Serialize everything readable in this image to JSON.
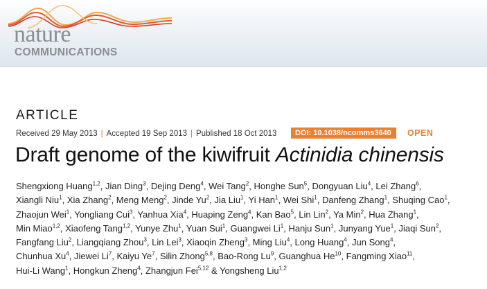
{
  "header": {
    "logo_line1": "nature",
    "logo_line2": "COMMUNICATIONS"
  },
  "article_type": "ARTICLE",
  "dates": {
    "received": "Received 29 May 2013",
    "accepted": "Accepted 19 Sep 2013",
    "published": "Published 18 Oct 2013"
  },
  "doi": "DOI: 10.1038/ncomms3640",
  "open_label": "OPEN",
  "title": {
    "main": "Draft genome of the kiwifruit ",
    "italic": "Actinidia chinensis"
  },
  "authors": [
    [
      [
        "Shengxiong Huang",
        "1,2"
      ],
      [
        "Jian Ding",
        "3"
      ],
      [
        "Dejing Deng",
        "4"
      ],
      [
        "Wei Tang",
        "2"
      ],
      [
        "Honghe Sun",
        "5"
      ],
      [
        "Dongyuan Liu",
        "4"
      ],
      [
        "Lei Zhang",
        "6"
      ]
    ],
    [
      [
        "Xiangli Niu",
        "1"
      ],
      [
        "Xia Zhang",
        "2"
      ],
      [
        "Meng Meng",
        "2"
      ],
      [
        "Jinde Yu",
        "2"
      ],
      [
        "Jia Liu",
        "1"
      ],
      [
        "Yi Han",
        "1"
      ],
      [
        "Wei Shi",
        "1"
      ],
      [
        "Danfeng Zhang",
        "1"
      ],
      [
        "Shuqing Cao",
        "1"
      ]
    ],
    [
      [
        "Zhaojun Wei",
        "1"
      ],
      [
        "Yongliang Cui",
        "3"
      ],
      [
        "Yanhua Xia",
        "4"
      ],
      [
        "Huaping Zeng",
        "4"
      ],
      [
        "Kan Bao",
        "5"
      ],
      [
        "Lin Lin",
        "2"
      ],
      [
        "Ya Min",
        "2"
      ],
      [
        "Hua Zhang",
        "1"
      ]
    ],
    [
      [
        "Min Miao",
        "1,2"
      ],
      [
        "Xiaofeng Tang",
        "1,2"
      ],
      [
        "Yunye Zhu",
        "1"
      ],
      [
        "Yuan Sui",
        "1"
      ],
      [
        "Guangwei Li",
        "1"
      ],
      [
        "Hanju Sun",
        "1"
      ],
      [
        "Junyang Yue",
        "1"
      ],
      [
        "Jiaqi Sun",
        "2"
      ]
    ],
    [
      [
        "Fangfang Liu",
        "2"
      ],
      [
        "Liangqiang Zhou",
        "3"
      ],
      [
        "Lin Lei",
        "3"
      ],
      [
        "Xiaoqin Zheng",
        "3"
      ],
      [
        "Ming Liu",
        "4"
      ],
      [
        "Long Huang",
        "4"
      ],
      [
        "Jun Song",
        "4"
      ]
    ],
    [
      [
        "Chunhua Xu",
        "4"
      ],
      [
        "Jiewei Li",
        "7"
      ],
      [
        "Kaiyu Ye",
        "7"
      ],
      [
        "Silin Zhong",
        "5,8"
      ],
      [
        "Bao-Rong Lu",
        "9"
      ],
      [
        "Guanghua He",
        "10"
      ],
      [
        "Fangming Xiao",
        "11"
      ]
    ],
    [
      [
        "Hui-Li Wang",
        "1"
      ],
      [
        "Hongkun Zheng",
        "4"
      ],
      [
        "Zhangjun Fei",
        "5,12"
      ],
      [
        "Yongsheng Liu",
        "1,2"
      ]
    ]
  ],
  "author_last_joiner": " & "
}
